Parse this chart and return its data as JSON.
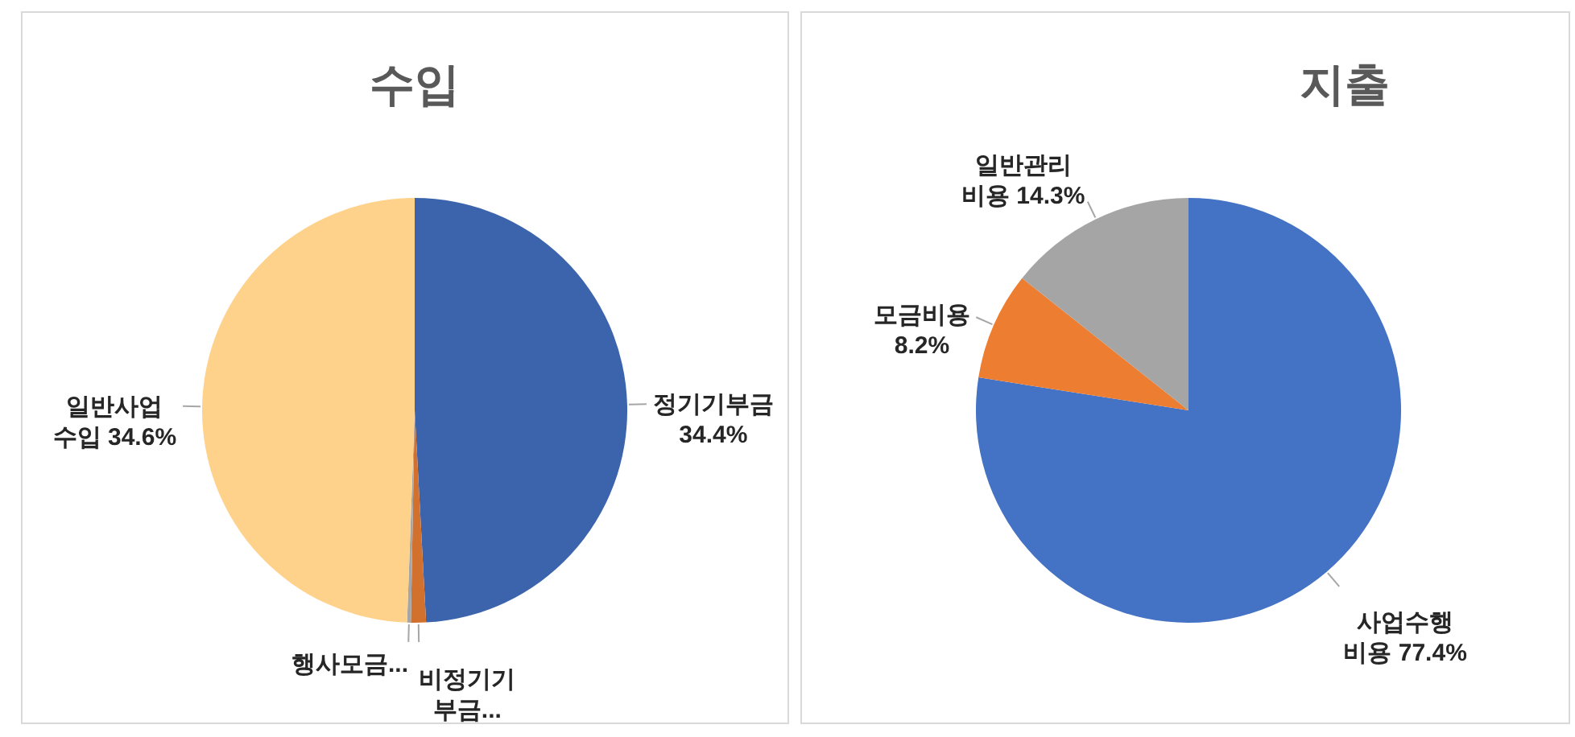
{
  "chart_data": [
    {
      "type": "pie",
      "title": "수입",
      "categories": [
        "정기기부금",
        "비정기기부금...",
        "행사모금...",
        "일반사업 수입"
      ],
      "values": [
        34.4,
        0.8,
        0.2,
        34.6
      ],
      "colors": [
        "#3c64ac",
        "#d2702d",
        "#a5a5a5",
        "#ffd28c"
      ],
      "value_labels": [
        "34.4%",
        null,
        null,
        "34.6%"
      ]
    },
    {
      "type": "pie",
      "title": "지출",
      "categories": [
        "사업수행 비용",
        "모금비용",
        "일반관리 비용"
      ],
      "values": [
        77.4,
        8.2,
        14.3
      ],
      "colors": [
        "#4472c4",
        "#ed7d31",
        "#a5a5a5"
      ],
      "value_labels": [
        "77.4%",
        "8.2%",
        "14.3%"
      ]
    }
  ]
}
